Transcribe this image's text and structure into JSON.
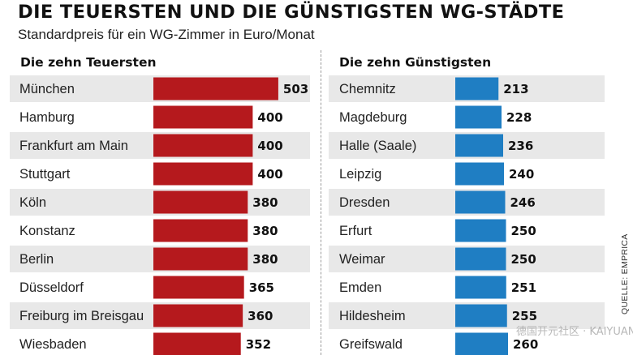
{
  "title": "DIE TEUERSTEN UND DIE GÜNSTIGSTEN WG-STÄDTE",
  "subtitle": "Standardpreis für ein WG-Zimmer in Euro/Monat",
  "source": "QUELLE: EMPRICA",
  "colors": {
    "left_bar": "#b5191d",
    "right_bar": "#1f7ec3",
    "row_shade": "#e8e8e8"
  },
  "chart_data": [
    {
      "type": "bar",
      "title": "Die zehn Teuersten",
      "categories": [
        "München",
        "Hamburg",
        "Frankfurt am Main",
        "Stuttgart",
        "Köln",
        "Konstanz",
        "Berlin",
        "Düsseldorf",
        "Freiburg im Breisgau",
        "Wiesbaden"
      ],
      "values": [
        503,
        400,
        400,
        400,
        380,
        380,
        380,
        365,
        360,
        352
      ],
      "color": "#b5191d"
    },
    {
      "type": "bar",
      "title": "Die zehn Günstigsten",
      "categories": [
        "Chemnitz",
        "Magdeburg",
        "Halle (Saale)",
        "Leipzig",
        "Dresden",
        "Erfurt",
        "Weimar",
        "Emden",
        "Hildesheim",
        "Greifswald"
      ],
      "values": [
        213,
        228,
        236,
        240,
        246,
        250,
        250,
        251,
        255,
        260
      ],
      "color": "#1f7ec3"
    }
  ]
}
